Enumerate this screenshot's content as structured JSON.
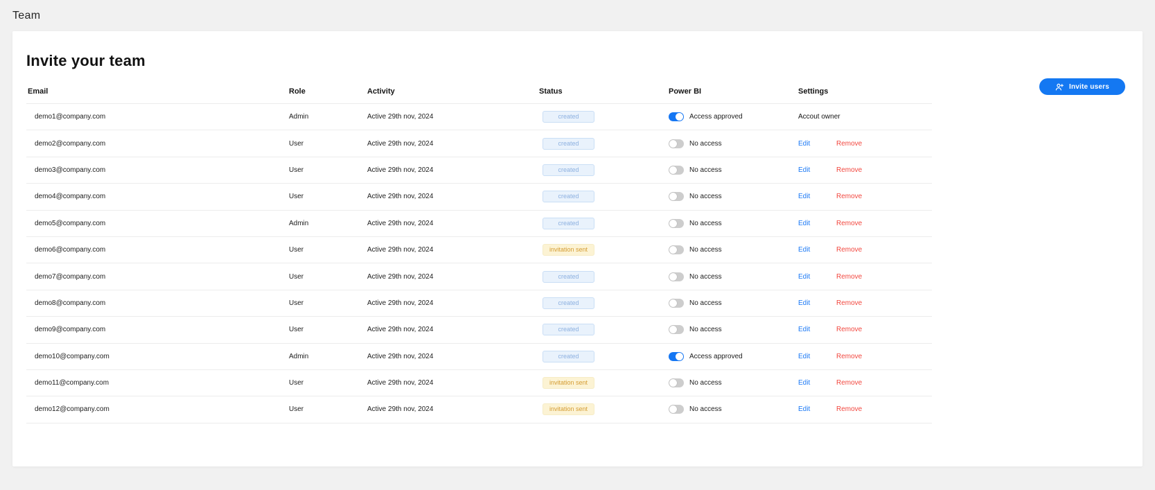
{
  "page_title": "Team",
  "card": {
    "heading": "Invite your team",
    "invite_button": {
      "label": "Invite users",
      "icon": "add-user-icon",
      "color": "#1478f2"
    }
  },
  "colors": {
    "accent_blue": "#1478f2",
    "edit_link": "#1a78f5",
    "remove_link": "#f2473f",
    "toggle_on": "#1677f3",
    "toggle_off": "#cdcdcd",
    "badge_created_bg": "#e9f2fc",
    "badge_created_text": "#8db1e0",
    "badge_invited_bg": "#fcf3d4",
    "badge_invited_text": "#d49c33"
  },
  "table": {
    "headers": [
      "Email",
      "Role",
      "Activity",
      "Status",
      "Power BI",
      "Settings"
    ],
    "links": {
      "edit": "Edit",
      "remove": "Remove"
    },
    "rows": [
      {
        "email": "demo1@company.com",
        "role": "Admin",
        "activity": "Active 29th nov, 2024",
        "status": "created",
        "power_bi": {
          "enabled": true,
          "label": "Access approved"
        },
        "settings": {
          "type": "owner",
          "label": "Accout owner"
        }
      },
      {
        "email": "demo2@company.com",
        "role": "User",
        "activity": "Active 29th nov, 2024",
        "status": "created",
        "power_bi": {
          "enabled": false,
          "label": "No access"
        },
        "settings": {
          "type": "links"
        }
      },
      {
        "email": "demo3@company.com",
        "role": "User",
        "activity": "Active 29th nov, 2024",
        "status": "created",
        "power_bi": {
          "enabled": false,
          "label": "No access"
        },
        "settings": {
          "type": "links"
        }
      },
      {
        "email": "demo4@company.com",
        "role": "User",
        "activity": "Active 29th nov, 2024",
        "status": "created",
        "power_bi": {
          "enabled": false,
          "label": "No access"
        },
        "settings": {
          "type": "links"
        }
      },
      {
        "email": "demo5@company.com",
        "role": "Admin",
        "activity": "Active 29th nov, 2024",
        "status": "created",
        "power_bi": {
          "enabled": false,
          "label": "No access"
        },
        "settings": {
          "type": "links"
        }
      },
      {
        "email": "demo6@company.com",
        "role": "User",
        "activity": "Active 29th nov, 2024",
        "status": "invitation sent",
        "power_bi": {
          "enabled": false,
          "label": "No access"
        },
        "settings": {
          "type": "links"
        }
      },
      {
        "email": "demo7@company.com",
        "role": "User",
        "activity": "Active 29th nov, 2024",
        "status": "created",
        "power_bi": {
          "enabled": false,
          "label": "No access"
        },
        "settings": {
          "type": "links"
        }
      },
      {
        "email": "demo8@company.com",
        "role": "User",
        "activity": "Active 29th nov, 2024",
        "status": "created",
        "power_bi": {
          "enabled": false,
          "label": "No access"
        },
        "settings": {
          "type": "links"
        }
      },
      {
        "email": "demo9@company.com",
        "role": "User",
        "activity": "Active 29th nov, 2024",
        "status": "created",
        "power_bi": {
          "enabled": false,
          "label": "No access"
        },
        "settings": {
          "type": "links"
        }
      },
      {
        "email": "demo10@company.com",
        "role": "Admin",
        "activity": "Active 29th nov, 2024",
        "status": "created",
        "power_bi": {
          "enabled": true,
          "label": "Access approved"
        },
        "settings": {
          "type": "links"
        }
      },
      {
        "email": "demo11@company.com",
        "role": "User",
        "activity": "Active 29th nov, 2024",
        "status": "invitation sent",
        "power_bi": {
          "enabled": false,
          "label": "No access"
        },
        "settings": {
          "type": "links"
        }
      },
      {
        "email": "demo12@company.com",
        "role": "User",
        "activity": "Active 29th nov, 2024",
        "status": "invitation sent",
        "power_bi": {
          "enabled": false,
          "label": "No access"
        },
        "settings": {
          "type": "links"
        }
      }
    ]
  }
}
